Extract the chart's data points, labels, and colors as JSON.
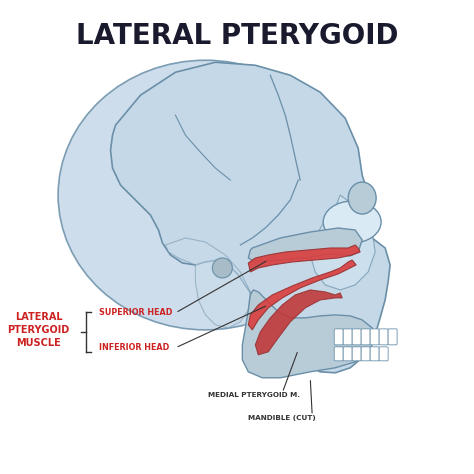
{
  "title": "LATERAL PTERYGOID",
  "title_color": "#1a1a2e",
  "title_fontsize": 20,
  "background_color": "#ffffff",
  "labels": {
    "lateral_pterygoid_muscle": "LATERAL\nPTERYGOID\nMUSCLE",
    "superior_head": "SUPERIOR HEAD",
    "inferior_head": "INFERIOR HEAD",
    "medial_pterygoid": "MEDIAL PTERYGOID M.",
    "mandible": "MANDIBLE (CUT)"
  },
  "label_color_red": "#cc2222",
  "label_color_dark": "#333333",
  "skull_fill": "#c5d8e8",
  "skull_fill2": "#b0c8da",
  "skull_stroke": "#6a8fa8",
  "muscle_fill": "#d94040",
  "muscle_stroke": "#993333",
  "muscle_fill2": "#c03535"
}
